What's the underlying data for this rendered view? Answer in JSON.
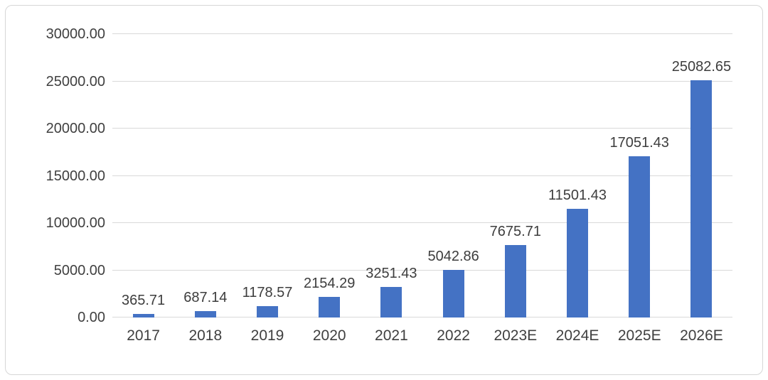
{
  "chart_data": {
    "type": "bar",
    "title": "",
    "xlabel": "",
    "ylabel": "",
    "categories": [
      "2017",
      "2018",
      "2019",
      "2020",
      "2021",
      "2022",
      "2023E",
      "2024E",
      "2025E",
      "2026E"
    ],
    "values": [
      365.71,
      687.14,
      1178.57,
      2154.29,
      3251.43,
      5042.86,
      7675.71,
      11501.43,
      17051.43,
      25082.65
    ],
    "value_labels": [
      "365.71",
      "687.14",
      "1178.57",
      "2154.29",
      "3251.43",
      "5042.86",
      "7675.71",
      "11501.43",
      "17051.43",
      "25082.65"
    ],
    "ylim": [
      0,
      30000
    ],
    "yticks": [
      0,
      5000,
      10000,
      15000,
      20000,
      25000,
      30000
    ],
    "ytick_labels": [
      "0.00",
      "5000.00",
      "10000.00",
      "15000.00",
      "20000.00",
      "25000.00",
      "30000.00"
    ],
    "grid": true,
    "legend": "none",
    "colors": {
      "bar": "#4472c4",
      "grid": "#d9d9d9",
      "text": "#404040",
      "border": "#d6d6d6",
      "background": "#ffffff"
    }
  }
}
